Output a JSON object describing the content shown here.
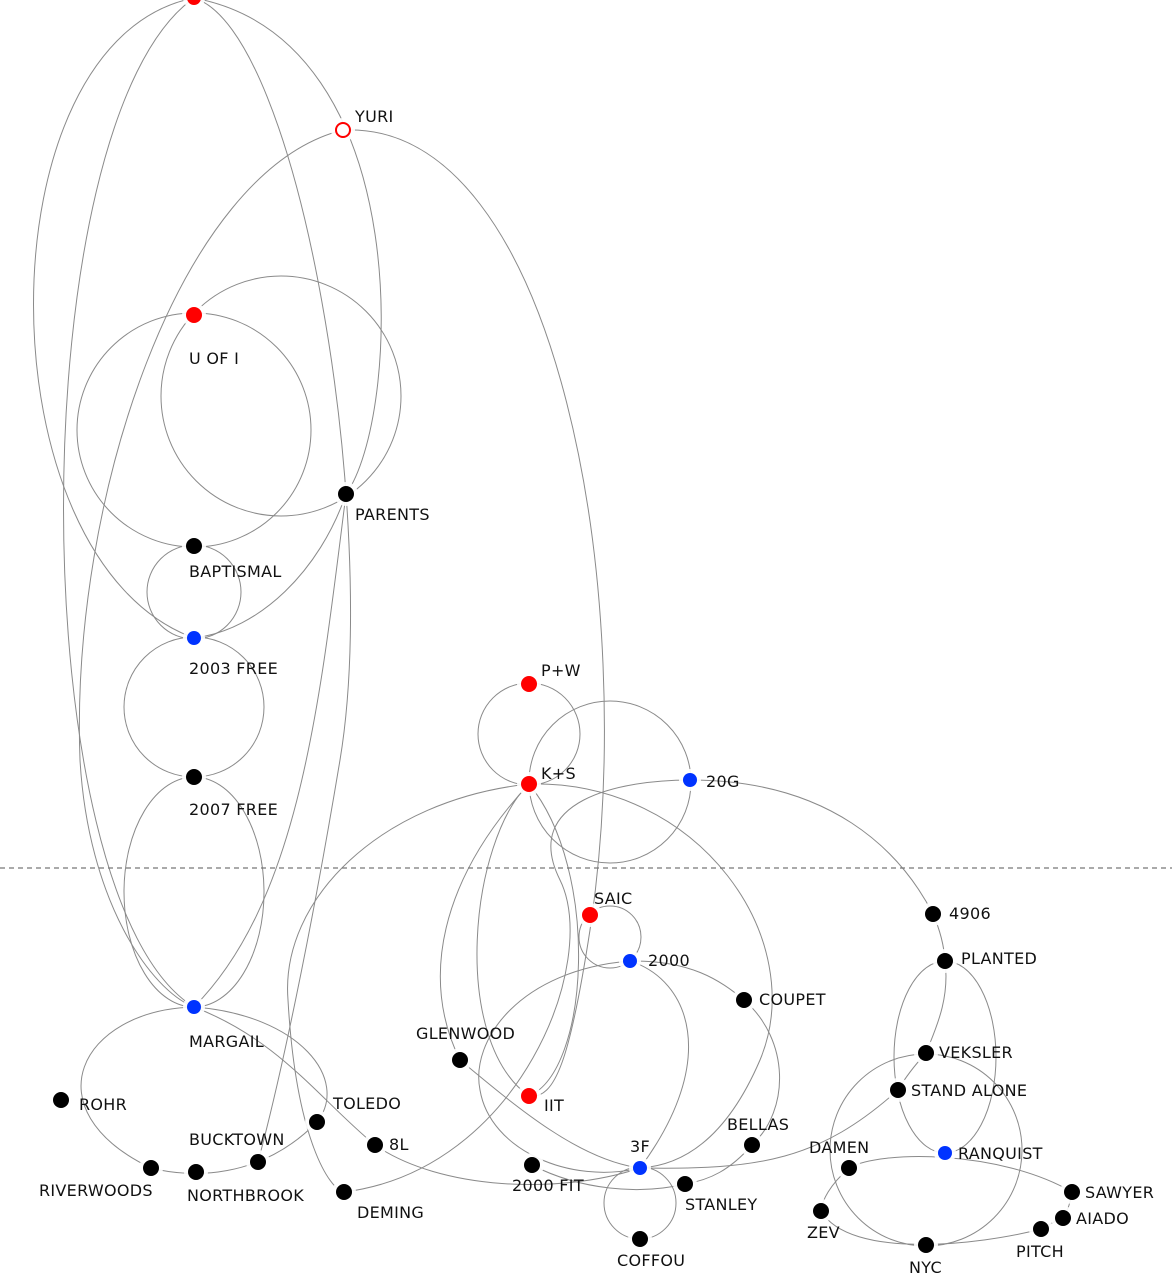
{
  "colors": {
    "red": "#ff0000",
    "blue": "#0033ff",
    "black": "#000000",
    "link": "#8a8a8a",
    "divider": "#777777"
  },
  "nodes": [
    {
      "id": "top",
      "label": "",
      "color": "red",
      "style": "filled"
    },
    {
      "id": "yuri",
      "label": "YURI",
      "color": "red",
      "style": "hollow"
    },
    {
      "id": "uofi",
      "label": "U OF I",
      "color": "red",
      "style": "filled"
    },
    {
      "id": "parents",
      "label": "PARENTS",
      "color": "black",
      "style": "filled"
    },
    {
      "id": "baptismal",
      "label": "BAPTISMAL",
      "color": "black",
      "style": "filled"
    },
    {
      "id": "free2003",
      "label": "2003 FREE",
      "color": "blue",
      "style": "filled"
    },
    {
      "id": "free2007",
      "label": "2007 FREE",
      "color": "black",
      "style": "filled"
    },
    {
      "id": "margail",
      "label": "MARGAIL",
      "color": "blue",
      "style": "filled"
    },
    {
      "id": "rohr",
      "label": "ROHR",
      "color": "black",
      "style": "filled"
    },
    {
      "id": "riverwoods",
      "label": "RIVERWOODS",
      "color": "black",
      "style": "filled"
    },
    {
      "id": "northbrook",
      "label": "NORTHBROOK",
      "color": "black",
      "style": "filled"
    },
    {
      "id": "bucktown",
      "label": "BUCKTOWN",
      "color": "black",
      "style": "filled"
    },
    {
      "id": "toledo",
      "label": "TOLEDO",
      "color": "black",
      "style": "filled"
    },
    {
      "id": "eightl",
      "label": "8L",
      "color": "black",
      "style": "filled"
    },
    {
      "id": "deming",
      "label": "DEMING",
      "color": "black",
      "style": "filled"
    },
    {
      "id": "pw",
      "label": "P+W",
      "color": "red",
      "style": "filled"
    },
    {
      "id": "ks",
      "label": "K+S",
      "color": "red",
      "style": "filled"
    },
    {
      "id": "twentyg",
      "label": "20G",
      "color": "blue",
      "style": "filled"
    },
    {
      "id": "saic",
      "label": "SAIC",
      "color": "red",
      "style": "filled"
    },
    {
      "id": "two000",
      "label": "2000",
      "color": "blue",
      "style": "filled"
    },
    {
      "id": "coupet",
      "label": "COUPET",
      "color": "black",
      "style": "filled"
    },
    {
      "id": "glenwood",
      "label": "GLENWOOD",
      "color": "black",
      "style": "filled"
    },
    {
      "id": "iit",
      "label": "IIT",
      "color": "red",
      "style": "filled"
    },
    {
      "id": "bellas",
      "label": "BELLAS",
      "color": "black",
      "style": "filled"
    },
    {
      "id": "threef",
      "label": "3F",
      "color": "blue",
      "style": "filled"
    },
    {
      "id": "fit2000",
      "label": "2000 FIT",
      "color": "black",
      "style": "filled"
    },
    {
      "id": "stanley",
      "label": "STANLEY",
      "color": "black",
      "style": "filled"
    },
    {
      "id": "coffou",
      "label": "COFFOU",
      "color": "black",
      "style": "filled"
    },
    {
      "id": "n4906",
      "label": "4906",
      "color": "black",
      "style": "filled"
    },
    {
      "id": "planted",
      "label": "PLANTED",
      "color": "black",
      "style": "filled"
    },
    {
      "id": "veksler",
      "label": "VEKSLER",
      "color": "black",
      "style": "filled"
    },
    {
      "id": "standalone",
      "label": "STAND ALONE",
      "color": "black",
      "style": "filled"
    },
    {
      "id": "ranquist",
      "label": "RANQUIST",
      "color": "blue",
      "style": "filled"
    },
    {
      "id": "damen",
      "label": "DAMEN",
      "color": "black",
      "style": "filled"
    },
    {
      "id": "zev",
      "label": "ZEV",
      "color": "black",
      "style": "filled"
    },
    {
      "id": "nyc",
      "label": "NYC",
      "color": "black",
      "style": "filled"
    },
    {
      "id": "pitch",
      "label": "PITCH",
      "color": "black",
      "style": "filled"
    },
    {
      "id": "aiado",
      "label": "AIADO",
      "color": "black",
      "style": "filled"
    },
    {
      "id": "sawyer",
      "label": "SAWYER",
      "color": "black",
      "style": "filled"
    }
  ]
}
